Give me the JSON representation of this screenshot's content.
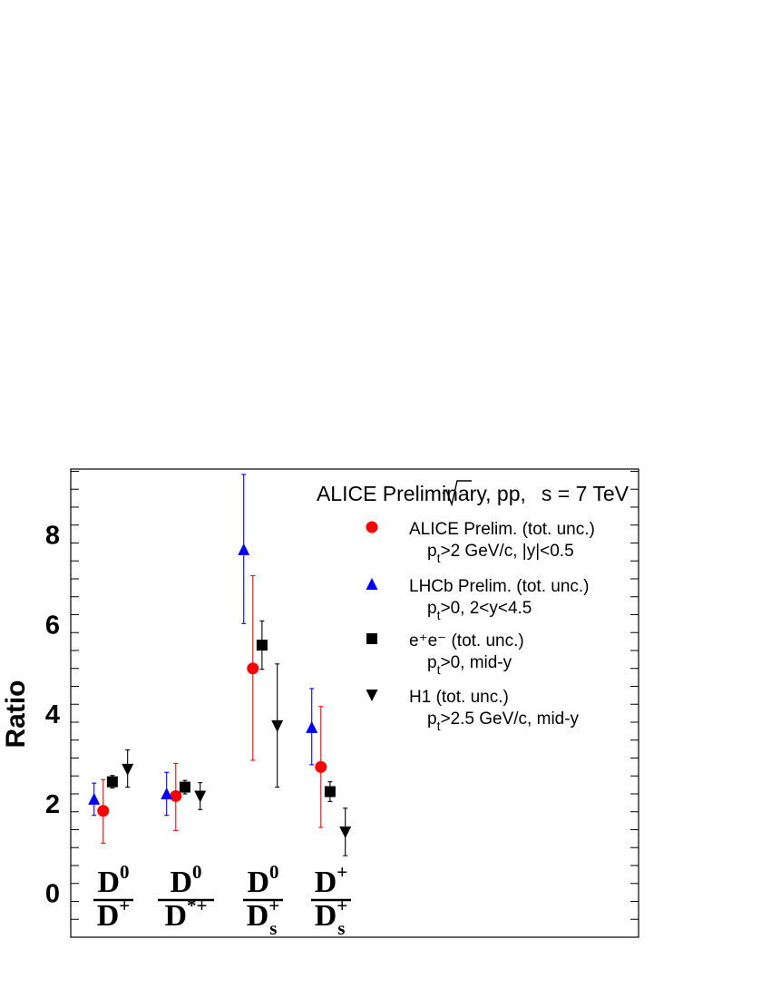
{
  "chart_data": {
    "type": "scatter",
    "ylabel": "Ratio",
    "ylim": [
      -1,
      9.45
    ],
    "yticks": [
      0,
      2,
      4,
      6,
      8
    ],
    "grid": false,
    "legend_position": "top-right",
    "header": {
      "prefix": "ALICE Preliminary, pp,",
      "sqrt_arg": "s",
      "suffix": " = 7 TeV"
    },
    "categories": [
      {
        "num_base": "D",
        "num_sup": "0",
        "den_base": "D",
        "den_sup": "+",
        "den_sub": ""
      },
      {
        "num_base": "D",
        "num_sup": "0",
        "den_base": "D",
        "den_sup": "*+",
        "den_sub": ""
      },
      {
        "num_base": "D",
        "num_sup": "0",
        "den_base": "D",
        "den_sup": "+",
        "den_sub": "s"
      },
      {
        "num_base": "D",
        "num_sup": "+",
        "den_base": "D",
        "den_sup": "+",
        "den_sub": "s"
      }
    ],
    "series": [
      {
        "name": "ALICE Prelim. (tot. unc.)",
        "cond_pre": "p",
        "cond_sub": "t",
        "cond_post": ">2 GeV/c, |y|<0.5",
        "marker": "circle",
        "color": "#ff0000",
        "offset": -0.1,
        "points": [
          {
            "cat": 0,
            "y": 1.82,
            "lo": 1.1,
            "hi": 2.52
          },
          {
            "cat": 1,
            "y": 2.15,
            "lo": 1.38,
            "hi": 2.88
          },
          {
            "cat": 2,
            "y": 5.0,
            "lo": 2.95,
            "hi": 7.07
          },
          {
            "cat": 3,
            "y": 2.8,
            "lo": 1.45,
            "hi": 4.15
          }
        ]
      },
      {
        "name": "LHCb Prelim. (tot. unc.)",
        "cond_pre": "p",
        "cond_sub": "t",
        "cond_post": ">0, 2<y<4.5",
        "marker": "triangle-up",
        "color": "#0000ff",
        "offset": -0.19,
        "points": [
          {
            "cat": 0,
            "y": 2.08,
            "lo": 1.72,
            "hi": 2.44
          },
          {
            "cat": 1,
            "y": 2.2,
            "lo": 1.72,
            "hi": 2.68
          },
          {
            "cat": 2,
            "y": 7.65,
            "lo": 6.0,
            "hi": 9.33
          },
          {
            "cat": 3,
            "y": 3.68,
            "lo": 2.85,
            "hi": 4.55
          }
        ]
      },
      {
        "name": "e⁺e⁻ (tot. unc.)",
        "cond_pre": "p",
        "cond_sub": "t",
        "cond_post": ">0, mid-y",
        "marker": "square",
        "color": "#000000",
        "offset": -0.01,
        "points": [
          {
            "cat": 0,
            "y": 2.47,
            "lo": 2.33,
            "hi": 2.61
          },
          {
            "cat": 1,
            "y": 2.35,
            "lo": 2.2,
            "hi": 2.5
          },
          {
            "cat": 2,
            "y": 5.52,
            "lo": 4.98,
            "hi": 6.06
          },
          {
            "cat": 3,
            "y": 2.25,
            "lo": 2.03,
            "hi": 2.47
          }
        ]
      },
      {
        "name": "H1 (tot. unc.)",
        "cond_pre": "p",
        "cond_sub": "t",
        "cond_post": ">2.5 GeV/c, mid-y",
        "marker": "triangle-down",
        "color": "#000000",
        "offset": 0.14,
        "points": [
          {
            "cat": 0,
            "y": 2.75,
            "lo": 2.35,
            "hi": 3.18
          },
          {
            "cat": 1,
            "y": 2.15,
            "lo": 1.85,
            "hi": 2.45
          },
          {
            "cat": 2,
            "y": 3.72,
            "lo": 2.35,
            "hi": 5.1
          },
          {
            "cat": 3,
            "y": 1.35,
            "lo": 0.82,
            "hi": 1.88
          }
        ]
      }
    ]
  }
}
